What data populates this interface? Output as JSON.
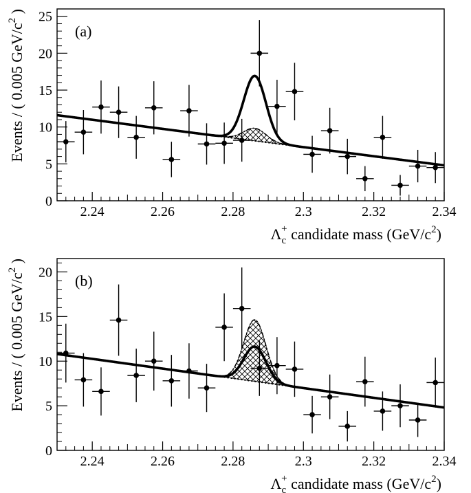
{
  "chart_data": [
    {
      "type": "scatter",
      "panel_label": "(a)",
      "xlabel": {
        "main": "Λ",
        "sub": "c",
        "sup": "+",
        "rest": " candidate mass (GeV/c",
        "unit_sup": "2",
        "end": ")"
      },
      "ylabel": {
        "main": "Events / ( 0.005 GeV/c",
        "sup": "2",
        "end": " )"
      },
      "xlim": [
        2.23,
        2.34
      ],
      "ylim": [
        0,
        26
      ],
      "x_ticks": [
        2.24,
        2.26,
        2.28,
        2.3,
        2.32,
        2.34
      ],
      "x_tick_labels": [
        "2.24",
        "2.26",
        "2.28",
        "2.3",
        "2.32",
        "2.34"
      ],
      "y_ticks": [
        0,
        5,
        10,
        15,
        20,
        25
      ],
      "y_tick_labels": [
        "0",
        "5",
        "10",
        "15",
        "20",
        "25"
      ],
      "bin_halfwidth": 0.0025,
      "x": [
        2.2325,
        2.2375,
        2.2425,
        2.2475,
        2.2525,
        2.2575,
        2.2625,
        2.2675,
        2.2725,
        2.2775,
        2.2825,
        2.2875,
        2.2925,
        2.2975,
        2.3025,
        2.3075,
        2.3125,
        2.3175,
        2.3225,
        2.3275,
        2.3325,
        2.3375
      ],
      "y": [
        8.0,
        9.3,
        12.7,
        12.0,
        8.6,
        12.6,
        5.6,
        12.2,
        7.7,
        7.8,
        8.2,
        20.0,
        12.8,
        14.8,
        6.3,
        9.5,
        6.0,
        3.0,
        8.6,
        2.1,
        4.7,
        4.5
      ],
      "yerr": [
        2.8,
        3.0,
        3.6,
        3.5,
        2.9,
        3.6,
        2.4,
        3.5,
        2.8,
        2.8,
        2.9,
        4.5,
        3.6,
        3.9,
        2.5,
        3.1,
        2.4,
        1.7,
        2.9,
        1.4,
        2.2,
        2.1
      ],
      "background_line": {
        "x": [
          2.23,
          2.34
        ],
        "y": [
          11.6,
          4.8
        ]
      },
      "signal": {
        "mean": 2.2862,
        "sigma": 0.00315,
        "total_amplitude": 8.8,
        "hatched_amplitude": 1.7
      }
    },
    {
      "type": "scatter",
      "panel_label": "(b)",
      "xlabel": {
        "main": "Λ",
        "sub": "c",
        "sup": "+",
        "rest": " candidate mass (GeV/c",
        "unit_sup": "2",
        "end": ")"
      },
      "ylabel": {
        "main": "Events / ( 0.005 GeV/c",
        "sup": "2",
        "end": " )"
      },
      "xlim": [
        2.23,
        2.34
      ],
      "ylim": [
        0,
        21.5
      ],
      "x_ticks": [
        2.24,
        2.26,
        2.28,
        2.3,
        2.32,
        2.34
      ],
      "x_tick_labels": [
        "2.24",
        "2.26",
        "2.28",
        "2.3",
        "2.32",
        "2.34"
      ],
      "y_ticks": [
        0,
        5,
        10,
        15,
        20
      ],
      "y_tick_labels": [
        "0",
        "5",
        "10",
        "15",
        "20"
      ],
      "bin_halfwidth": 0.0025,
      "x": [
        2.2325,
        2.2375,
        2.2425,
        2.2475,
        2.2525,
        2.2575,
        2.2625,
        2.2675,
        2.2725,
        2.2775,
        2.2825,
        2.2875,
        2.2925,
        2.2975,
        2.3025,
        2.3075,
        2.3125,
        2.3175,
        2.3225,
        2.3275,
        2.3325,
        2.3375
      ],
      "y": [
        10.9,
        7.9,
        6.6,
        14.6,
        8.4,
        10.0,
        7.8,
        8.9,
        7.0,
        13.8,
        15.9,
        9.2,
        9.5,
        9.1,
        4.0,
        6.0,
        2.7,
        7.7,
        4.4,
        5.0,
        3.4,
        7.6
      ],
      "yerr": [
        3.3,
        3.0,
        2.7,
        4.0,
        3.0,
        3.3,
        2.9,
        3.1,
        2.7,
        3.8,
        4.6,
        3.1,
        3.2,
        3.1,
        2.1,
        2.5,
        1.7,
        2.8,
        2.2,
        2.4,
        1.9,
        2.8
      ],
      "background_line": {
        "x": [
          2.23,
          2.34
        ],
        "y": [
          10.8,
          4.8
        ]
      },
      "signal": {
        "mean": 2.2862,
        "sigma": 0.00315,
        "total_amplitude": 3.9,
        "hatched_amplitude": 6.9
      }
    }
  ]
}
